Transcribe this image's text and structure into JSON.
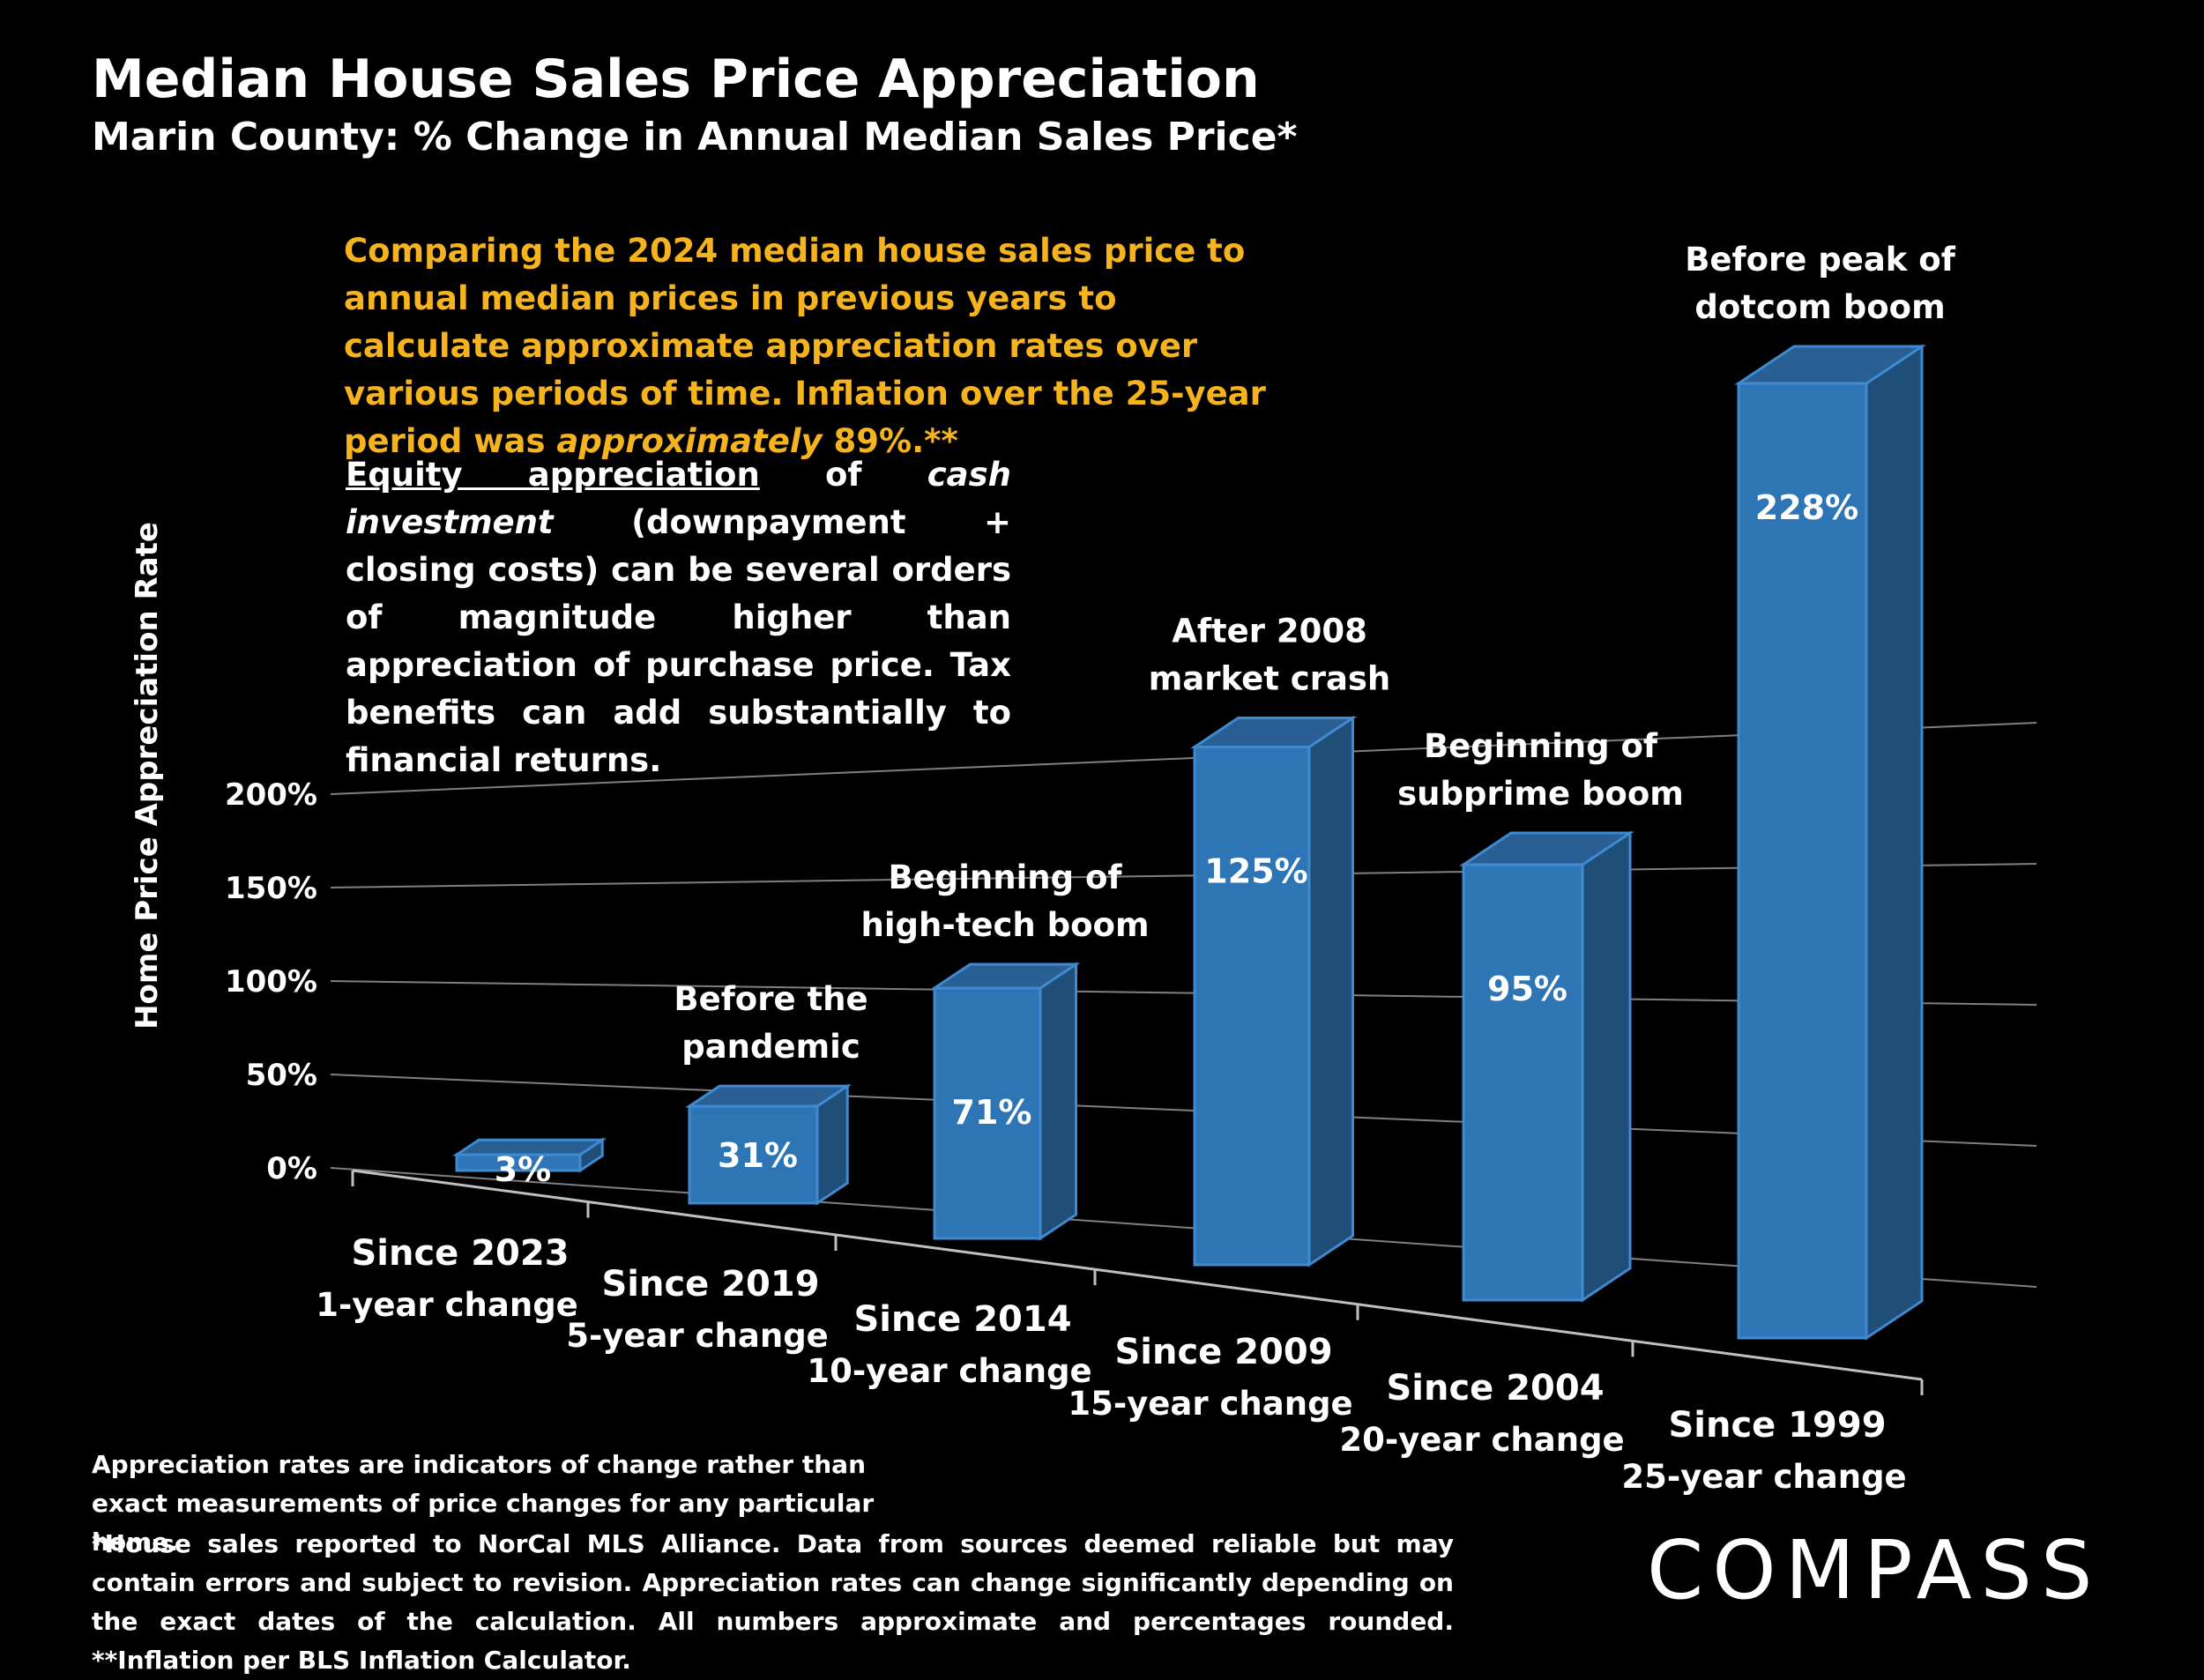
{
  "header": {
    "title": "Median House Sales Price Appreciation",
    "subtitle": "Marin County: % Change in Annual Median Sales Price*"
  },
  "notes": {
    "intro_before": "Comparing the 2024 median house sales price to annual median prices in previous years to calculate approximate appreciation rates over various periods of time. Inflation over the 25-year period was ",
    "intro_emph": "approximately",
    "intro_after": " 89%.**",
    "equity_underlined": "Equity appreciation",
    "equity_of": " of ",
    "equity_emph": "cash investment",
    "equity_rest": " (downpayment + closing costs) can be several orders of magnitude higher than appreciation of purchase price. Tax benefits can add substantially to financial returns."
  },
  "footer": {
    "note1": "Appreciation rates are indicators of change rather than exact measurements of price changes for any particular home.",
    "note2": "*House sales reported to NorCal MLS Alliance. Data from sources deemed reliable but may contain errors and subject to revision. Appreciation rates can change significantly depending on the exact dates of the calculation. All numbers  approximate and percentages rounded. **Inflation per BLS Inflation Calculator."
  },
  "logo": {
    "text": "COMPASS"
  },
  "chart_data": {
    "type": "bar",
    "ylabel": "Home Price Appreciation Rate",
    "ylim": [
      0,
      200
    ],
    "yticks": [
      "0%",
      "50%",
      "100%",
      "150%",
      "200%"
    ],
    "grid": true,
    "categories": [
      "Since 2023 1-year change",
      "Since 2019 5-year change",
      "Since 2014 10-year change",
      "Since 2009 15-year change",
      "Since 2004 20-year change",
      "Since 1999 25-year change"
    ],
    "category_lines": [
      [
        "Since 2023",
        "1-year change"
      ],
      [
        "Since 2019",
        "5-year change"
      ],
      [
        "Since 2014",
        "10-year change"
      ],
      [
        "Since 2009",
        "15-year change"
      ],
      [
        "Since 2004",
        "20-year change"
      ],
      [
        "Since 1999",
        "25-year change"
      ]
    ],
    "values": [
      3,
      31,
      71,
      125,
      95,
      228
    ],
    "data_labels": [
      "3%",
      "31%",
      "71%",
      "125%",
      "95%",
      "228%"
    ],
    "annotations": [
      [],
      [
        "Before the",
        "pandemic"
      ],
      [
        "Beginning of",
        "high-tech boom"
      ],
      [
        "After 2008",
        "market crash"
      ],
      [
        "Beginning of",
        "subprime boom"
      ],
      [
        "Before peak of",
        "dotcom boom"
      ]
    ],
    "colors": {
      "bar": "#2e75b6",
      "bar_side": "#1f4e79",
      "bar_top": "#2a5f94",
      "text": "#ffffff",
      "grid": "#7f7f7f"
    }
  }
}
